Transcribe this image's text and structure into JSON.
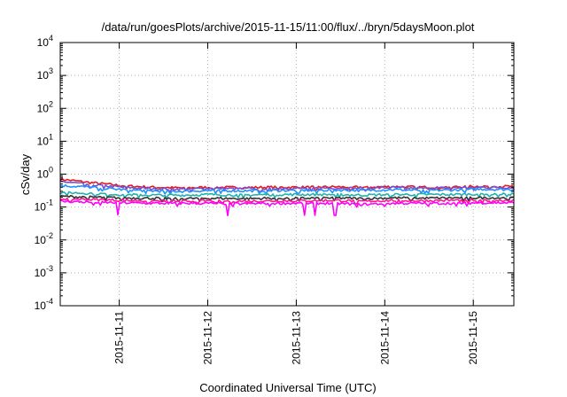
{
  "chart_data": {
    "type": "line",
    "title": "/data/run/goesPlots/archive/2015-11-15/11:00/flux/../bryn/5daysMoon.plot",
    "xlabel": "Coordinated Universal Time (UTC)",
    "ylabel": "cSv/day",
    "yscale": "log",
    "ylim": [
      0.0001,
      10000
    ],
    "yticks": [
      {
        "base": "10",
        "exp": "-4"
      },
      {
        "base": "10",
        "exp": "-3"
      },
      {
        "base": "10",
        "exp": "-2"
      },
      {
        "base": "10",
        "exp": "-1"
      },
      {
        "base": "10",
        "exp": "0"
      },
      {
        "base": "10",
        "exp": "1"
      },
      {
        "base": "10",
        "exp": "2"
      },
      {
        "base": "10",
        "exp": "3"
      },
      {
        "base": "10",
        "exp": "4"
      }
    ],
    "xlim": [
      "2015-11-10 08:00",
      "2015-11-15 11:00"
    ],
    "xticks": [
      "2015-11-11",
      "2015-11-12",
      "2015-11-13",
      "2015-11-14",
      "2015-11-15"
    ],
    "grid": true,
    "series": [
      {
        "color": "#e41a1c",
        "values": [
          0.7,
          0.55,
          0.45,
          0.4,
          0.38,
          0.4,
          0.39,
          0.4,
          0.4,
          0.41,
          0.4,
          0.42,
          0.4,
          0.41,
          0.43,
          0.42
        ]
      },
      {
        "color": "#7b4fd4",
        "values": [
          0.6,
          0.48,
          0.4,
          0.36,
          0.35,
          0.37,
          0.36,
          0.37,
          0.37,
          0.38,
          0.37,
          0.39,
          0.37,
          0.38,
          0.4,
          0.39
        ]
      },
      {
        "color": "#1e90ff",
        "values": [
          0.45,
          0.4,
          0.34,
          0.31,
          0.3,
          0.32,
          0.31,
          0.32,
          0.32,
          0.33,
          0.32,
          0.34,
          0.32,
          0.33,
          0.35,
          0.34
        ]
      },
      {
        "color": "#20b2aa",
        "values": [
          0.28,
          0.26,
          0.24,
          0.23,
          0.23,
          0.24,
          0.23,
          0.24,
          0.24,
          0.24,
          0.23,
          0.24,
          0.24,
          0.24,
          0.25,
          0.25
        ]
      },
      {
        "color": "#333333",
        "values": [
          0.21,
          0.2,
          0.19,
          0.185,
          0.18,
          0.185,
          0.18,
          0.185,
          0.185,
          0.19,
          0.18,
          0.19,
          0.185,
          0.19,
          0.19,
          0.19
        ]
      },
      {
        "color": "#ff1493",
        "values": [
          0.18,
          0.17,
          0.16,
          0.155,
          0.15,
          0.155,
          0.15,
          0.155,
          0.155,
          0.16,
          0.15,
          0.16,
          0.155,
          0.16,
          0.16,
          0.16
        ]
      },
      {
        "color": "#ff00ff",
        "values": [
          0.15,
          0.14,
          0.135,
          0.13,
          0.13,
          0.13,
          0.125,
          0.13,
          0.13,
          0.13,
          0.12,
          0.13,
          0.13,
          0.13,
          0.135,
          0.135
        ]
      }
    ]
  }
}
